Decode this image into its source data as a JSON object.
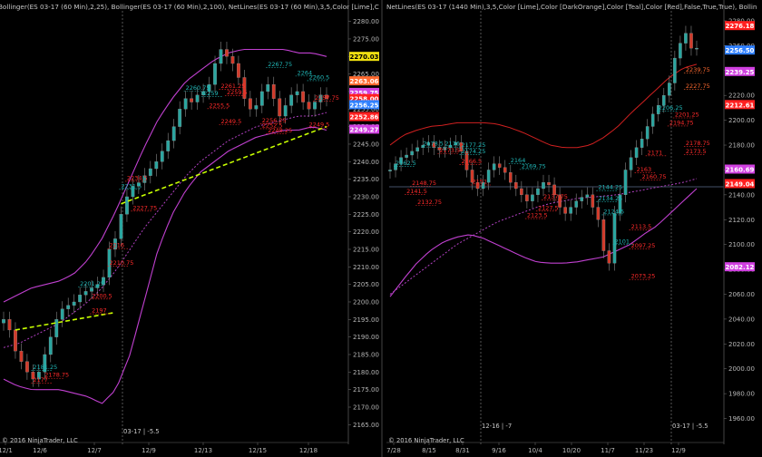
{
  "app": {
    "copyright": "© 2016 NinjaTrader, LLC",
    "colors": {
      "background": "#000000",
      "axis_text": "#b8b8b8",
      "candle_up": "#2aa6a0",
      "candle_down": "#d23a2a",
      "wick": "#8a8a8a",
      "band_outer": "#c040d0",
      "band_inner": "#d02020",
      "midline": "#b040c0",
      "trendline": "#c8ff00",
      "net_up_label": "#20b8b8",
      "net_down_label": "#ff2a2a",
      "marker_red": "#ff2020",
      "marker_orange": "#ff6a30",
      "marker_magenta": "#d040e0",
      "marker_yellow": "#f0e010",
      "marker_green": "#40ff40",
      "marker_blue": "#3080ff"
    }
  },
  "chart_data": [
    {
      "type": "line",
      "title": "Bollinger(ES 03-17 (60 Min),2,25), Bollinger(ES 03-17 (60 Min),2,100), NetLines(ES 03-17 (60 Min),3,5,Color [Lime],Color",
      "footer_label": "03-17 | -5.5",
      "x_tick_labels": [
        "12/1",
        "12/6",
        "12/7",
        "12/9",
        "12/13",
        "12/15",
        "12/18"
      ],
      "y_tick_labels": [
        "2280.00",
        "2275.00",
        "2270.00",
        "2265.00",
        "2260.00",
        "2255.00",
        "2250.00",
        "2245.00",
        "2240.00",
        "2235.00",
        "2230.00",
        "2225.00",
        "2220.00",
        "2215.00",
        "2210.00",
        "2205.00",
        "2200.00",
        "2195.00",
        "2190.00",
        "2185.00",
        "2180.00",
        "2175.00",
        "2170.00",
        "2165.00"
      ],
      "ylim": [
        2162.5,
        2283
      ],
      "price_close": [
        2195,
        2192,
        2186,
        2183,
        2180,
        2178,
        2180,
        2185,
        2190,
        2195,
        2198,
        2199,
        2200,
        2202,
        2203,
        2204,
        2205,
        2207,
        2215,
        2218,
        2225,
        2230,
        2233,
        2234,
        2236,
        2238,
        2240,
        2243,
        2246,
        2250,
        2255,
        2258,
        2257,
        2259,
        2260,
        2262,
        2268,
        2272,
        2270,
        2268,
        2264,
        2258,
        2255,
        2256,
        2260,
        2262,
        2258,
        2253,
        2256,
        2259,
        2260,
        2257,
        2255,
        2257,
        2259,
        2258
      ],
      "band_outer_upper": [
        2200,
        2202,
        2204,
        2205,
        2206,
        2208,
        2212,
        2218,
        2226,
        2235,
        2244,
        2252,
        2258,
        2263,
        2266,
        2269,
        2271,
        2272,
        2272,
        2272,
        2272,
        2271,
        2271,
        2270
      ],
      "band_outer_lower": [
        2178,
        2176,
        2175,
        2175,
        2175,
        2174,
        2173,
        2171,
        2175,
        2185,
        2200,
        2215,
        2225,
        2232,
        2237,
        2240,
        2243,
        2245,
        2247,
        2248,
        2249,
        2249,
        2250,
        2249
      ],
      "midline": [
        2187,
        2188,
        2190,
        2192,
        2194,
        2197,
        2200,
        2204,
        2209,
        2215,
        2221,
        2226,
        2231,
        2236,
        2240,
        2243,
        2246,
        2248,
        2250,
        2251,
        2252,
        2253,
        2253,
        2254
      ],
      "trendlines": [
        {
          "from": [
            2,
            2192
          ],
          "to": [
            19,
            2197
          ]
        },
        {
          "from": [
            20,
            2228
          ],
          "to": [
            55,
            2250
          ]
        }
      ],
      "right_markers": [
        {
          "value": "2270.03",
          "price": 2270.03,
          "color": "marker_yellow"
        },
        {
          "value": "2263.06",
          "price": 2263.06,
          "color": "marker_orange"
        },
        {
          "value": "2259.75",
          "price": 2259.75,
          "color": "marker_magenta"
        },
        {
          "value": "2258.00",
          "price": 2258.0,
          "color": "marker_red"
        },
        {
          "value": "2256.25",
          "price": 2256.25,
          "color": "marker_blue"
        },
        {
          "value": "2252.86",
          "price": 2252.86,
          "color": "marker_red"
        },
        {
          "value": "2249.27",
          "price": 2249.27,
          "color": "marker_magenta"
        }
      ],
      "annotations": [
        {
          "text": "2267.75",
          "i": 45,
          "price": 2267.2,
          "color": "net_up_label"
        },
        {
          "text": "2260.75",
          "i": 31,
          "price": 2260.5,
          "color": "net_up_label"
        },
        {
          "text": "2259",
          "i": 34,
          "price": 2259.0,
          "color": "net_up_label"
        },
        {
          "text": "2264",
          "i": 50,
          "price": 2264.8,
          "color": "net_up_label"
        },
        {
          "text": "2260.5",
          "i": 52,
          "price": 2263.5,
          "color": "net_up_label"
        },
        {
          "text": "2261.25",
          "i": 37,
          "price": 2261.0,
          "color": "net_down_label"
        },
        {
          "text": "2259.5",
          "i": 38,
          "price": 2259.2,
          "color": "net_down_label"
        },
        {
          "text": "2255.5",
          "i": 35,
          "price": 2255.5,
          "color": "net_down_label"
        },
        {
          "text": "2257.75",
          "i": 53,
          "price": 2257.6,
          "color": "net_down_label"
        },
        {
          "text": "2256.25",
          "i": 44,
          "price": 2251.2,
          "color": "net_down_label"
        },
        {
          "text": "2252.5",
          "i": 44,
          "price": 2249.8,
          "color": "net_down_label"
        },
        {
          "text": "2249.5",
          "i": 52,
          "price": 2250.0,
          "color": "net_down_label"
        },
        {
          "text": "2248.25",
          "i": 45,
          "price": 2248.4,
          "color": "net_down_label"
        },
        {
          "text": "2249.5",
          "i": 37,
          "price": 2251.0,
          "color": "net_down_label"
        },
        {
          "text": "2234.5",
          "i": 21,
          "price": 2234.8,
          "color": "net_down_label"
        },
        {
          "text": "2227.75",
          "i": 22,
          "price": 2226.3,
          "color": "net_down_label"
        },
        {
          "text": "2231.5",
          "i": 20,
          "price": 2232.5,
          "color": "net_up_label"
        },
        {
          "text": "2216",
          "i": 18,
          "price": 2215.6,
          "color": "net_down_label"
        },
        {
          "text": "2210.75",
          "i": 18,
          "price": 2210.6,
          "color": "net_down_label"
        },
        {
          "text": "2201.25",
          "i": 13,
          "price": 2204.6,
          "color": "net_up_label"
        },
        {
          "text": "2200.5",
          "i": 15,
          "price": 2201.2,
          "color": "net_down_label"
        },
        {
          "text": "2197",
          "i": 15,
          "price": 2197.0,
          "color": "net_down_label"
        },
        {
          "text": "2181.25",
          "i": 5,
          "price": 2180.8,
          "color": "net_up_label"
        },
        {
          "text": "2178.75",
          "i": 7,
          "price": 2178.6,
          "color": "net_down_label"
        },
        {
          "text": "2177",
          "i": 5,
          "price": 2177.3,
          "color": "net_down_label"
        }
      ]
    },
    {
      "type": "line",
      "title": "NetLines(ES 03-17 (1440 Min),3,5,Color [Lime],Color [DarkOrange],Color [Teal],Color [Red],False,True,True), Bollin",
      "footer_labels": [
        "12-16 | -7",
        "03-17 | -5.5"
      ],
      "x_tick_labels": [
        "7/28",
        "8/15",
        "8/31",
        "9/16",
        "10/4",
        "10/20",
        "11/7",
        "11/23",
        "12/9"
      ],
      "y_tick_labels": [
        "2280.00",
        "2260.00",
        "2240.00",
        "2220.00",
        "2200.00",
        "2180.00",
        "2160.00",
        "2140.00",
        "2120.00",
        "2100.00",
        "2080.00",
        "2060.00",
        "2040.00",
        "2020.00",
        "2000.00",
        "1980.00",
        "1960.00"
      ],
      "ylim": [
        1948,
        2288
      ],
      "price_close": [
        2160,
        2165,
        2170,
        2172,
        2175,
        2178,
        2180,
        2182,
        2178,
        2176,
        2178,
        2180,
        2182,
        2175,
        2160,
        2150,
        2145,
        2150,
        2160,
        2165,
        2162,
        2158,
        2150,
        2145,
        2140,
        2135,
        2140,
        2145,
        2150,
        2148,
        2140,
        2130,
        2125,
        2130,
        2135,
        2138,
        2140,
        2130,
        2120,
        2095,
        2085,
        2125,
        2140,
        2160,
        2170,
        2178,
        2185,
        2195,
        2205,
        2212,
        2220,
        2230,
        2250,
        2262,
        2270,
        2258,
        2258
      ],
      "band_upper": [
        2180,
        2188,
        2192,
        2195,
        2196,
        2198,
        2198,
        2198,
        2197,
        2194,
        2190,
        2185,
        2180,
        2178,
        2178,
        2180,
        2186,
        2194,
        2205,
        2215,
        2225,
        2235,
        2242,
        2245
      ],
      "band_lower": [
        2058,
        2072,
        2085,
        2095,
        2102,
        2106,
        2108,
        2105,
        2100,
        2095,
        2090,
        2086,
        2085,
        2085,
        2086,
        2088,
        2090,
        2095,
        2100,
        2108,
        2115,
        2125,
        2135,
        2145
      ],
      "midline": [
        2060,
        2068,
        2076,
        2084,
        2092,
        2100,
        2106,
        2112,
        2118,
        2122,
        2126,
        2130,
        2133,
        2135,
        2137,
        2138,
        2139,
        2140,
        2142,
        2144,
        2146,
        2148,
        2150,
        2153
      ],
      "right_markers": [
        {
          "value": "2276.18",
          "price": 2276.18,
          "color": "marker_red"
        },
        {
          "value": "2256.50",
          "price": 2256.5,
          "color": "marker_blue"
        },
        {
          "value": "2239.25",
          "price": 2239.25,
          "color": "marker_magenta"
        },
        {
          "value": "2212.61",
          "price": 2212.61,
          "color": "marker_red"
        },
        {
          "value": "2160.69",
          "price": 2160.69,
          "color": "marker_magenta"
        },
        {
          "value": "2149.04",
          "price": 2149.04,
          "color": "marker_red"
        },
        {
          "value": "2082.12",
          "price": 2082.12,
          "color": "marker_magenta"
        }
      ],
      "annotations": [
        {
          "text": "2239.75",
          "i": 54,
          "price": 2239.0,
          "color": "marker_orange"
        },
        {
          "text": "2227.75",
          "i": 54,
          "price": 2226.0,
          "color": "marker_orange"
        },
        {
          "text": "2201.25",
          "i": 52,
          "price": 2203.0,
          "color": "net_down_label"
        },
        {
          "text": "2194.75",
          "i": 51,
          "price": 2196.5,
          "color": "net_down_label"
        },
        {
          "text": "2206.25",
          "i": 49,
          "price": 2208.5,
          "color": "net_up_label"
        },
        {
          "text": "2178.75",
          "i": 54,
          "price": 2180.0,
          "color": "net_down_label"
        },
        {
          "text": "2173.5",
          "i": 54,
          "price": 2173.5,
          "color": "net_down_label"
        },
        {
          "text": "2171",
          "i": 47,
          "price": 2172.5,
          "color": "net_down_label"
        },
        {
          "text": "2163",
          "i": 45,
          "price": 2159.0,
          "color": "net_down_label"
        },
        {
          "text": "2160.75",
          "i": 46,
          "price": 2153.0,
          "color": "net_down_label"
        },
        {
          "text": "2178.5",
          "i": 6,
          "price": 2179.5,
          "color": "net_up_label"
        },
        {
          "text": "2176",
          "i": 10,
          "price": 2179.5,
          "color": "net_up_label"
        },
        {
          "text": "2177.25",
          "i": 13,
          "price": 2178.5,
          "color": "net_up_label"
        },
        {
          "text": "2174.25",
          "i": 13,
          "price": 2173.5,
          "color": "net_up_label"
        },
        {
          "text": "2173.5",
          "i": 9,
          "price": 2174.0,
          "color": "net_down_label"
        },
        {
          "text": "2162.5",
          "i": 1,
          "price": 2164.0,
          "color": "net_up_label"
        },
        {
          "text": "2166.5",
          "i": 13,
          "price": 2165.5,
          "color": "net_down_label"
        },
        {
          "text": "2164",
          "i": 22,
          "price": 2166.0,
          "color": "net_up_label"
        },
        {
          "text": "2169.75",
          "i": 24,
          "price": 2161.5,
          "color": "net_up_label"
        },
        {
          "text": "2148.75",
          "i": 4,
          "price": 2148.0,
          "color": "net_down_label"
        },
        {
          "text": "2141.5",
          "i": 3,
          "price": 2141.5,
          "color": "net_down_label"
        },
        {
          "text": "2132.75",
          "i": 5,
          "price": 2132.5,
          "color": "net_down_label"
        },
        {
          "text": "2151",
          "i": 15,
          "price": 2149.0,
          "color": "net_down_label"
        },
        {
          "text": "2137.75",
          "i": 28,
          "price": 2137.0,
          "color": "net_down_label"
        },
        {
          "text": "2127.5",
          "i": 27,
          "price": 2128.0,
          "color": "net_down_label"
        },
        {
          "text": "2123.5",
          "i": 25,
          "price": 2122.0,
          "color": "net_down_label"
        },
        {
          "text": "2144.25",
          "i": 38,
          "price": 2144.5,
          "color": "net_up_label"
        },
        {
          "text": "2134.25",
          "i": 38,
          "price": 2135.5,
          "color": "net_up_label"
        },
        {
          "text": "2124.5",
          "i": 39,
          "price": 2125.0,
          "color": "net_up_label"
        },
        {
          "text": "2113.5",
          "i": 44,
          "price": 2113.0,
          "color": "net_down_label"
        },
        {
          "text": "2101",
          "i": 41,
          "price": 2101.0,
          "color": "net_up_label"
        },
        {
          "text": "2097.25",
          "i": 44,
          "price": 2097.5,
          "color": "net_down_label"
        },
        {
          "text": "2073.25",
          "i": 44,
          "price": 2073.0,
          "color": "net_down_label"
        }
      ]
    }
  ]
}
